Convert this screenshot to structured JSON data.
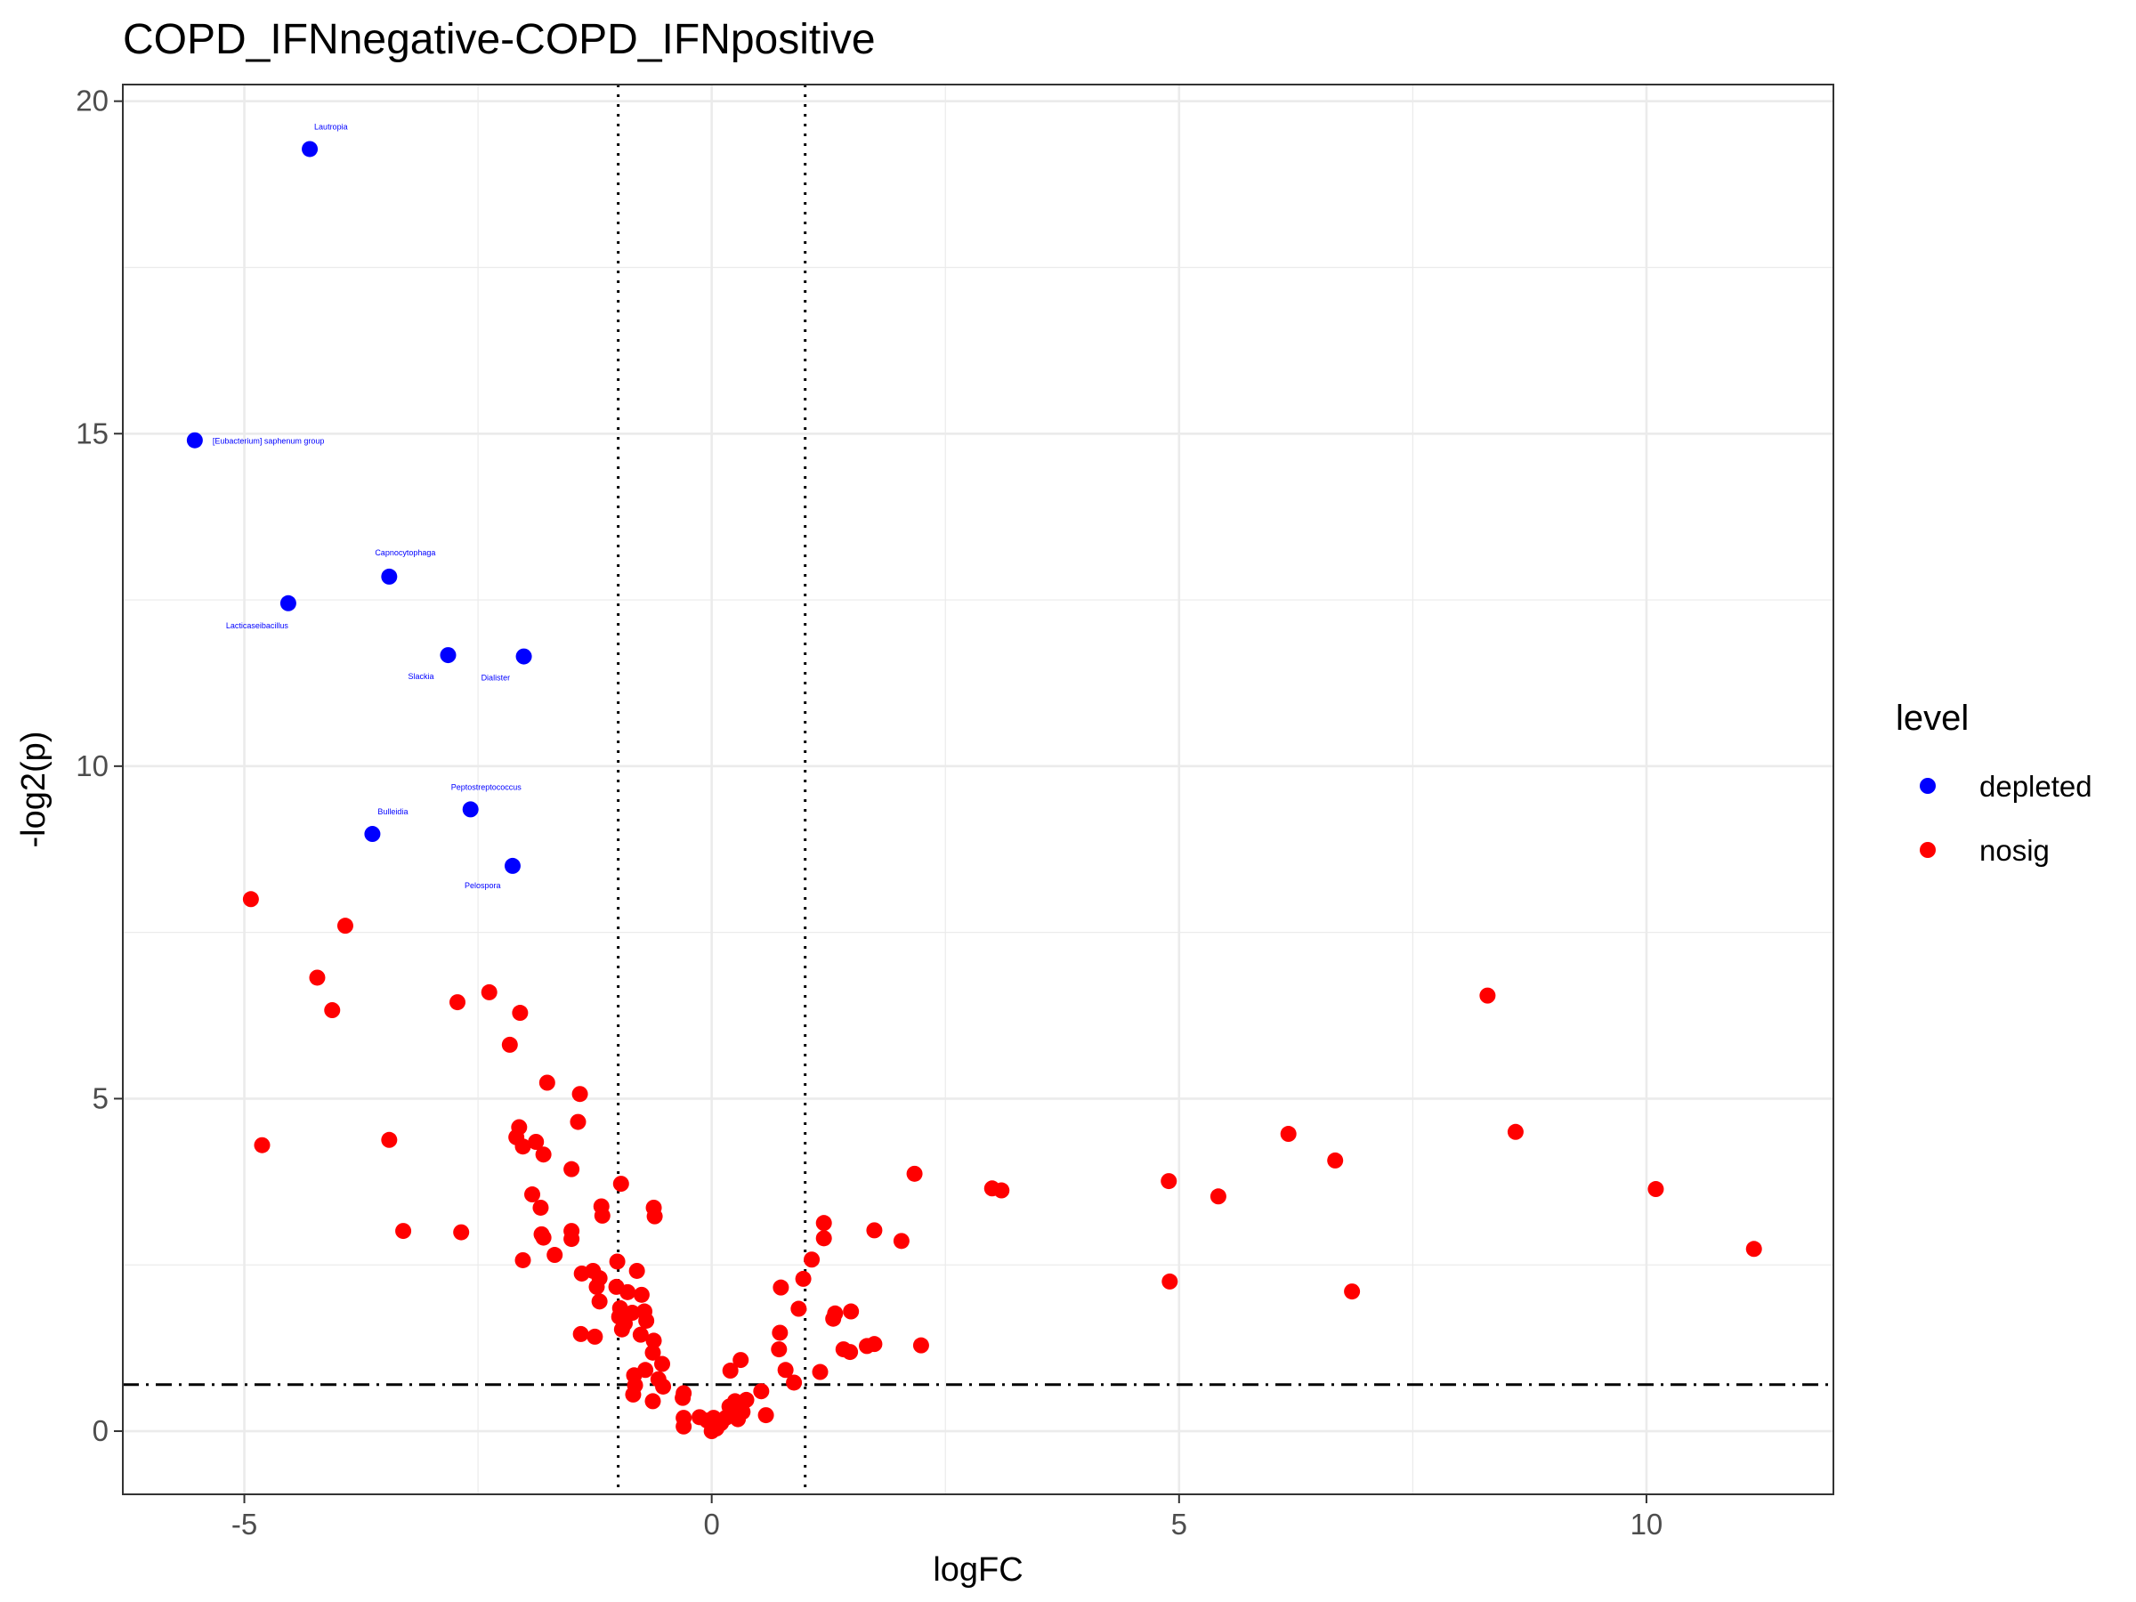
{
  "chart_data": {
    "type": "scatter",
    "title": "COPD_IFNnegative-COPD_IFNpositive",
    "xlabel": "logFC",
    "ylabel": "-log2(p)",
    "xlim": [
      -6.3,
      12.0
    ],
    "ylim": [
      -0.95,
      20.25
    ],
    "x_ticks": [
      -5,
      0,
      5,
      10
    ],
    "x_tick_labels": [
      "-5",
      "0",
      "5",
      "10"
    ],
    "y_ticks": [
      0,
      5,
      10,
      15,
      20
    ],
    "y_tick_labels": [
      "0",
      "5",
      "10",
      "15",
      "20"
    ],
    "grid": true,
    "reference_lines": {
      "vertical_dotted": [
        -1,
        1
      ],
      "horizontal_dashdot": 0.7
    },
    "legend": {
      "title": "level",
      "position": "right",
      "entries": [
        {
          "label": "depleted",
          "color": "#0000ff"
        },
        {
          "label": "nosig",
          "color": "#ff0000"
        }
      ]
    },
    "series": [
      {
        "name": "depleted",
        "color": "#0000ff",
        "points": [
          {
            "x": -4.3,
            "y": 19.28,
            "label": "Lautropia"
          },
          {
            "x": -5.53,
            "y": 14.9,
            "label": "[Eubacterium] saphenum group"
          },
          {
            "x": -3.45,
            "y": 12.85,
            "label": "Capnocytophaga"
          },
          {
            "x": -4.53,
            "y": 12.45,
            "label": "Lacticaseibacillus"
          },
          {
            "x": -2.82,
            "y": 11.67,
            "label": "Slackia"
          },
          {
            "x": -2.01,
            "y": 11.65,
            "label": "Dialister"
          },
          {
            "x": -2.58,
            "y": 9.35,
            "label": "Peptostreptococcus"
          },
          {
            "x": -3.63,
            "y": 8.98,
            "label": "Bulleidia"
          },
          {
            "x": -2.13,
            "y": 8.5,
            "label": "Pelospora"
          }
        ]
      },
      {
        "name": "nosig",
        "color": "#ff0000",
        "points": [
          {
            "x": -4.93,
            "y": 8.0
          },
          {
            "x": -3.92,
            "y": 7.6
          },
          {
            "x": -4.22,
            "y": 6.82
          },
          {
            "x": -4.06,
            "y": 6.33
          },
          {
            "x": -2.38,
            "y": 6.6
          },
          {
            "x": -2.72,
            "y": 6.45
          },
          {
            "x": -2.05,
            "y": 6.29
          },
          {
            "x": -2.16,
            "y": 5.81
          },
          {
            "x": -1.76,
            "y": 5.24
          },
          {
            "x": -1.41,
            "y": 5.07
          },
          {
            "x": -1.43,
            "y": 4.65
          },
          {
            "x": -4.81,
            "y": 4.3
          },
          {
            "x": -3.45,
            "y": 4.38
          },
          {
            "x": -2.06,
            "y": 4.57
          },
          {
            "x": -2.09,
            "y": 4.42
          },
          {
            "x": -2.02,
            "y": 4.28
          },
          {
            "x": -1.88,
            "y": 4.35
          },
          {
            "x": -1.8,
            "y": 4.16
          },
          {
            "x": -1.5,
            "y": 3.94
          },
          {
            "x": -0.97,
            "y": 3.72
          },
          {
            "x": -1.92,
            "y": 3.56
          },
          {
            "x": -1.83,
            "y": 3.36
          },
          {
            "x": -1.18,
            "y": 3.38
          },
          {
            "x": -1.17,
            "y": 3.24
          },
          {
            "x": -0.62,
            "y": 3.36
          },
          {
            "x": -0.61,
            "y": 3.23
          },
          {
            "x": -3.3,
            "y": 3.01
          },
          {
            "x": -2.68,
            "y": 2.99
          },
          {
            "x": -1.5,
            "y": 3.01
          },
          {
            "x": -1.5,
            "y": 2.89
          },
          {
            "x": -1.82,
            "y": 2.96
          },
          {
            "x": -1.8,
            "y": 2.91
          },
          {
            "x": -2.02,
            "y": 2.57
          },
          {
            "x": -1.68,
            "y": 2.65
          },
          {
            "x": -1.01,
            "y": 2.55
          },
          {
            "x": -1.27,
            "y": 2.41
          },
          {
            "x": -1.2,
            "y": 2.3
          },
          {
            "x": -1.39,
            "y": 2.37
          },
          {
            "x": -0.8,
            "y": 2.41
          },
          {
            "x": -1.23,
            "y": 2.17
          },
          {
            "x": -1.02,
            "y": 2.17
          },
          {
            "x": -0.9,
            "y": 2.09
          },
          {
            "x": -0.75,
            "y": 2.05
          },
          {
            "x": -1.2,
            "y": 1.95
          },
          {
            "x": -0.98,
            "y": 1.85
          },
          {
            "x": -0.72,
            "y": 1.8
          },
          {
            "x": -0.85,
            "y": 1.78
          },
          {
            "x": -0.99,
            "y": 1.72
          },
          {
            "x": -0.93,
            "y": 1.62
          },
          {
            "x": -0.7,
            "y": 1.66
          },
          {
            "x": -0.96,
            "y": 1.53
          },
          {
            "x": -1.4,
            "y": 1.46
          },
          {
            "x": -1.25,
            "y": 1.42
          },
          {
            "x": -0.76,
            "y": 1.45
          },
          {
            "x": -0.62,
            "y": 1.36
          },
          {
            "x": -0.63,
            "y": 1.18
          },
          {
            "x": -0.53,
            "y": 1.01
          },
          {
            "x": -0.71,
            "y": 0.92
          },
          {
            "x": -0.83,
            "y": 0.84
          },
          {
            "x": -0.57,
            "y": 0.78
          },
          {
            "x": -0.82,
            "y": 0.69
          },
          {
            "x": -0.52,
            "y": 0.67
          },
          {
            "x": -0.84,
            "y": 0.55
          },
          {
            "x": -0.63,
            "y": 0.45
          },
          {
            "x": -0.3,
            "y": 0.57
          },
          {
            "x": -0.31,
            "y": 0.5
          },
          {
            "x": -0.3,
            "y": 0.2
          },
          {
            "x": -0.3,
            "y": 0.07
          },
          {
            "x": -0.13,
            "y": 0.21
          },
          {
            "x": -0.05,
            "y": 0.16
          },
          {
            "x": 0.02,
            "y": 0.2
          },
          {
            "x": 0.03,
            "y": 0.08
          },
          {
            "x": 0.0,
            "y": 0.0
          },
          {
            "x": 0.05,
            "y": 0.04
          },
          {
            "x": 0.1,
            "y": 0.12
          },
          {
            "x": 0.15,
            "y": 0.2
          },
          {
            "x": 0.2,
            "y": 0.27
          },
          {
            "x": 0.19,
            "y": 0.37
          },
          {
            "x": 0.25,
            "y": 0.45
          },
          {
            "x": 0.3,
            "y": 0.39
          },
          {
            "x": 0.33,
            "y": 0.29
          },
          {
            "x": 0.28,
            "y": 0.18
          },
          {
            "x": 0.23,
            "y": 0.34
          },
          {
            "x": 0.37,
            "y": 0.47
          },
          {
            "x": 0.53,
            "y": 0.6
          },
          {
            "x": 0.58,
            "y": 0.24
          },
          {
            "x": 0.2,
            "y": 0.91
          },
          {
            "x": 0.31,
            "y": 1.07
          },
          {
            "x": 0.79,
            "y": 0.92
          },
          {
            "x": 0.88,
            "y": 0.73
          },
          {
            "x": 1.16,
            "y": 0.89
          },
          {
            "x": 0.72,
            "y": 1.23
          },
          {
            "x": 0.73,
            "y": 1.48
          },
          {
            "x": 0.93,
            "y": 1.84
          },
          {
            "x": 0.74,
            "y": 2.16
          },
          {
            "x": 0.98,
            "y": 2.29
          },
          {
            "x": 1.07,
            "y": 2.58
          },
          {
            "x": 1.2,
            "y": 2.9
          },
          {
            "x": 1.2,
            "y": 3.13
          },
          {
            "x": 1.3,
            "y": 1.69
          },
          {
            "x": 1.32,
            "y": 1.77
          },
          {
            "x": 1.49,
            "y": 1.8
          },
          {
            "x": 1.41,
            "y": 1.23
          },
          {
            "x": 1.48,
            "y": 1.19
          },
          {
            "x": 1.66,
            "y": 1.28
          },
          {
            "x": 1.74,
            "y": 1.31
          },
          {
            "x": 1.74,
            "y": 3.02
          },
          {
            "x": 2.03,
            "y": 2.86
          },
          {
            "x": 2.17,
            "y": 3.87
          },
          {
            "x": 2.24,
            "y": 1.29
          },
          {
            "x": 3.0,
            "y": 3.65
          },
          {
            "x": 3.1,
            "y": 3.62
          },
          {
            "x": 4.89,
            "y": 3.76
          },
          {
            "x": 4.9,
            "y": 2.25
          },
          {
            "x": 5.42,
            "y": 3.53
          },
          {
            "x": 6.17,
            "y": 4.47
          },
          {
            "x": 6.67,
            "y": 4.07
          },
          {
            "x": 6.85,
            "y": 2.1
          },
          {
            "x": 8.3,
            "y": 6.55
          },
          {
            "x": 8.6,
            "y": 4.5
          },
          {
            "x": 10.1,
            "y": 3.64
          },
          {
            "x": 11.15,
            "y": 2.74
          }
        ]
      }
    ]
  }
}
